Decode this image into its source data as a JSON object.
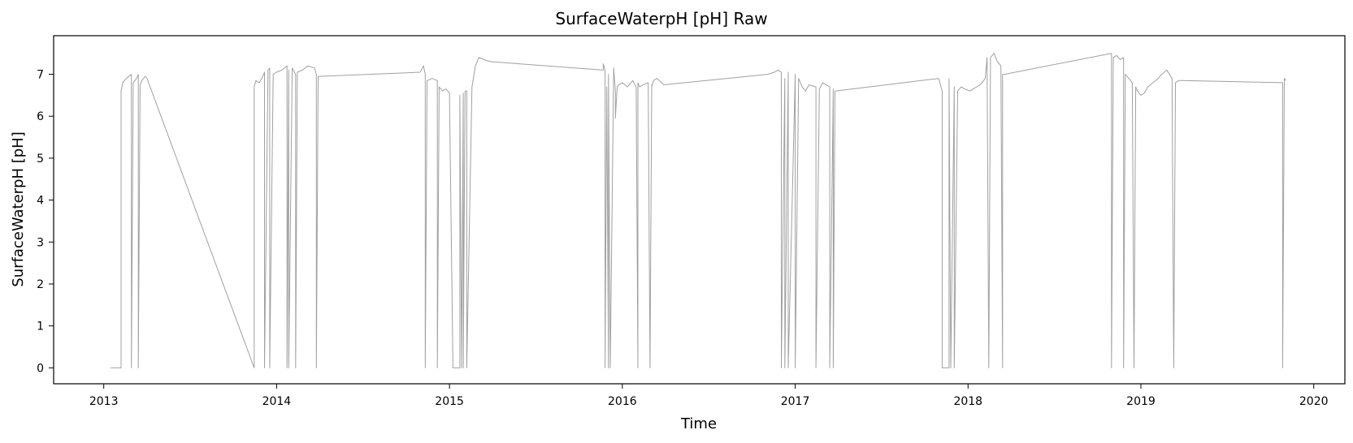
{
  "chart_data": {
    "type": "line",
    "title": "SurfaceWaterpH [pH] Raw",
    "xlabel": "Time",
    "ylabel": "SurfaceWaterpH [pH]",
    "xlim": [
      2012.71,
      2020.18
    ],
    "ylim": [
      -0.38,
      7.92
    ],
    "xticks": [
      2013,
      2014,
      2015,
      2016,
      2017,
      2018,
      2019,
      2020
    ],
    "yticks": [
      0,
      1,
      2,
      3,
      4,
      5,
      6,
      7
    ],
    "grid": false,
    "legend": "none",
    "colors": {
      "series": "#a0a0a0",
      "frame": "#000000",
      "background": "#ffffff"
    },
    "series": [
      {
        "name": "",
        "x": [
          2013.04,
          2013.1,
          2013.1,
          2013.11,
          2013.13,
          2013.16,
          2013.16,
          2013.17,
          2013.18,
          2013.19,
          2013.2,
          2013.2,
          2013.21,
          2013.22,
          2013.24,
          2013.25,
          2013.87,
          2013.87,
          2013.88,
          2013.9,
          2013.92,
          2013.93,
          2013.93,
          2013.95,
          2013.96,
          2013.96,
          2013.98,
          2014.0,
          2014.03,
          2014.06,
          2014.06,
          2014.07,
          2014.07,
          2014.09,
          2014.11,
          2014.11,
          2014.12,
          2014.15,
          2014.18,
          2014.22,
          2014.23,
          2014.23,
          2014.24,
          2014.25,
          2014.83,
          2014.85,
          2014.86,
          2014.86,
          2014.87,
          2014.87,
          2014.9,
          2014.93,
          2014.93,
          2014.94,
          2014.96,
          2014.98,
          2015.0,
          2015.02,
          2015.02,
          2015.06,
          2015.06,
          2015.07,
          2015.08,
          2015.08,
          2015.09,
          2015.1,
          2015.1,
          2015.13,
          2015.15,
          2015.16,
          2015.17,
          2015.2,
          2015.24,
          2015.89,
          2015.89,
          2015.9,
          2015.9,
          2015.91,
          2015.92,
          2015.92,
          2015.93,
          2015.95,
          2015.96,
          2015.96,
          2015.97,
          2015.98,
          2016.0,
          2016.03,
          2016.06,
          2016.08,
          2016.09,
          2016.09,
          2016.1,
          2016.12,
          2016.15,
          2016.16,
          2016.17,
          2016.17,
          2016.18,
          2016.2,
          2016.24,
          2016.84,
          2016.88,
          2016.9,
          2016.92,
          2016.92,
          2016.94,
          2016.94,
          2016.96,
          2016.96,
          2017.0,
          2017.0,
          2017.02,
          2017.04,
          2017.06,
          2017.08,
          2017.12,
          2017.12,
          2017.14,
          2017.16,
          2017.18,
          2017.2,
          2017.2,
          2017.22,
          2017.22,
          2017.23,
          2017.83,
          2017.85,
          2017.85,
          2017.89,
          2017.89,
          2017.9,
          2017.92,
          2017.92,
          2017.94,
          2017.96,
          2017.98,
          2018.01,
          2018.05,
          2018.07,
          2018.1,
          2018.11,
          2018.12,
          2018.13,
          2018.15,
          2018.17,
          2018.19,
          2018.2,
          2018.2,
          2018.21,
          2018.83,
          2018.83,
          2018.84,
          2018.86,
          2018.88,
          2018.9,
          2018.9,
          2018.91,
          2018.93,
          2018.95,
          2018.96,
          2018.97,
          2018.98,
          2019.0,
          2019.02,
          2019.04,
          2019.07,
          2019.1,
          2019.12,
          2019.15,
          2019.18,
          2019.19,
          2019.2,
          2019.22,
          2019.23,
          2019.82,
          2019.82,
          2019.83,
          2019.84
        ],
        "y": [
          0.0,
          0.0,
          6.6,
          6.8,
          6.9,
          7.0,
          0.0,
          6.8,
          6.85,
          6.9,
          7.0,
          0.0,
          6.75,
          6.85,
          6.95,
          6.9,
          0.0,
          6.7,
          6.85,
          6.8,
          6.95,
          7.05,
          0.0,
          7.1,
          7.15,
          0.0,
          7.0,
          7.05,
          7.1,
          7.2,
          0.0,
          7.1,
          0.0,
          7.15,
          7.0,
          0.0,
          7.05,
          7.1,
          7.2,
          7.15,
          7.0,
          0.0,
          6.95,
          6.95,
          7.05,
          7.2,
          7.0,
          0.0,
          6.7,
          6.85,
          6.9,
          6.85,
          0.0,
          6.7,
          6.6,
          6.65,
          6.55,
          0.0,
          0.0,
          0.0,
          6.5,
          0.0,
          6.55,
          0.0,
          6.6,
          6.6,
          0.0,
          6.7,
          7.2,
          7.3,
          7.4,
          7.35,
          7.3,
          7.1,
          7.25,
          7.1,
          0.0,
          6.7,
          0.0,
          7.0,
          0.0,
          7.15,
          6.6,
          5.95,
          6.7,
          6.75,
          6.8,
          6.7,
          6.85,
          6.7,
          0.0,
          6.8,
          6.7,
          6.75,
          6.8,
          0.0,
          6.75,
          6.7,
          6.85,
          6.9,
          6.75,
          7.0,
          7.05,
          7.1,
          7.05,
          0.0,
          6.9,
          0.0,
          7.05,
          0.0,
          7.0,
          0.0,
          6.9,
          6.7,
          6.6,
          6.75,
          6.7,
          0.0,
          6.65,
          6.8,
          6.75,
          6.7,
          0.0,
          6.65,
          0.0,
          6.6,
          6.9,
          6.6,
          0.0,
          0.0,
          6.9,
          0.0,
          6.7,
          0.0,
          6.6,
          6.7,
          6.65,
          6.6,
          6.7,
          6.75,
          6.9,
          7.4,
          0.0,
          7.4,
          7.5,
          7.3,
          7.2,
          0.0,
          7.0,
          7.0,
          7.5,
          0.0,
          7.4,
          7.45,
          7.35,
          7.4,
          0.0,
          7.0,
          6.9,
          6.8,
          0.0,
          6.7,
          6.6,
          6.5,
          6.55,
          6.7,
          6.8,
          6.9,
          7.0,
          7.1,
          6.9,
          0.0,
          6.8,
          6.85,
          6.85,
          6.8,
          0.0,
          6.9,
          6.85
        ]
      }
    ]
  }
}
